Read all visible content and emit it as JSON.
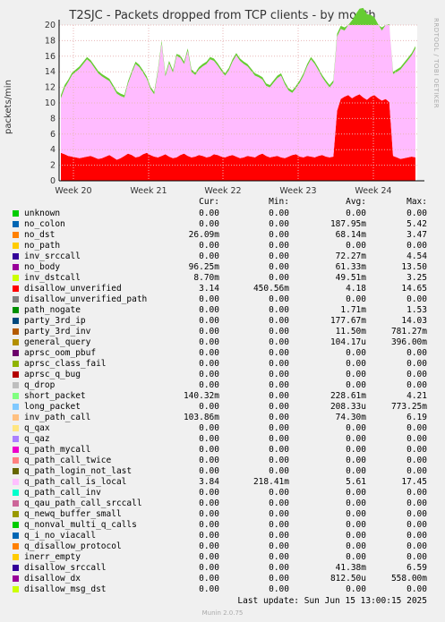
{
  "chart_data": {
    "type": "area",
    "title": "T2SJC - Packets dropped from TCP clients - by month",
    "ylabel": "packets/min",
    "ylim": [
      0,
      20
    ],
    "yticks": [
      0,
      2,
      4,
      6,
      8,
      10,
      12,
      14,
      16,
      18,
      20
    ],
    "xticks": [
      "Week 20",
      "Week 21",
      "Week 22",
      "Week 23",
      "Week 24"
    ],
    "grid": true,
    "series": [
      {
        "name": "disallow_unverified",
        "color": "#ff0000",
        "values": [
          3.6,
          3.4,
          3.2,
          3.1,
          3.0,
          2.9,
          3.0,
          3.1,
          3.2,
          3.0,
          2.8,
          2.9,
          3.1,
          3.3,
          3.0,
          2.7,
          2.9,
          3.2,
          3.5,
          3.3,
          3.0,
          3.1,
          3.4,
          3.6,
          3.3,
          3.1,
          3.0,
          3.2,
          3.4,
          3.1,
          2.9,
          3.0,
          3.3,
          3.5,
          3.2,
          3.0,
          3.1,
          3.3,
          3.2,
          3.0,
          3.1,
          3.4,
          3.3,
          3.1,
          3.0,
          3.2,
          3.3,
          3.1,
          2.9,
          3.0,
          3.2,
          3.1,
          3.0,
          3.3,
          3.5,
          3.2,
          3.0,
          3.1,
          3.2,
          3.0,
          2.9,
          3.1,
          3.3,
          3.4,
          3.1,
          3.0,
          3.2,
          3.1,
          3.0,
          3.2,
          3.3,
          3.1,
          3.0,
          3.1,
          9.0,
          10.5,
          10.8,
          11.0,
          10.6,
          10.9,
          11.1,
          10.7,
          10.4,
          10.8,
          11.0,
          10.6,
          10.3,
          10.5,
          10.1,
          3.2,
          3.0,
          2.8,
          2.9,
          3.0,
          3.1,
          3.0
        ]
      },
      {
        "name": "q_path_call_is_local",
        "color": "#ffbbff",
        "values": [
          7.0,
          8.5,
          9.5,
          10.5,
          11.0,
          11.5,
          12.0,
          12.5,
          12.0,
          11.5,
          11.0,
          10.5,
          10.0,
          9.5,
          9.0,
          8.5,
          8.0,
          7.5,
          9.0,
          10.5,
          12.0,
          11.5,
          10.5,
          9.5,
          8.5,
          8.0,
          11.0,
          14.5,
          10.0,
          12.0,
          11.0,
          13.0,
          12.5,
          11.5,
          13.5,
          11.0,
          10.5,
          11.0,
          11.5,
          12.0,
          12.5,
          12.0,
          11.5,
          11.0,
          10.5,
          11.0,
          12.0,
          13.0,
          12.5,
          12.0,
          11.5,
          11.0,
          10.5,
          10.0,
          9.5,
          9.0,
          9.0,
          9.5,
          10.0,
          10.5,
          9.5,
          8.5,
          8.0,
          8.5,
          9.5,
          10.5,
          11.5,
          12.5,
          12.0,
          11.0,
          10.0,
          9.5,
          9.0,
          9.5,
          9.5,
          9.0,
          8.5,
          9.0,
          10.0,
          10.5,
          11.0,
          11.5,
          11.0,
          10.5,
          10.0,
          9.5,
          9.0,
          9.5,
          10.0,
          10.5,
          11.0,
          11.5,
          12.0,
          12.5,
          13.0,
          14.0
        ]
      },
      {
        "name": "short_packet",
        "color": "#66cc33",
        "values": [
          0.4,
          0.4,
          0.3,
          0.3,
          0.3,
          0.3,
          0.3,
          0.3,
          0.3,
          0.3,
          0.3,
          0.3,
          0.3,
          0.3,
          0.3,
          0.3,
          0.3,
          0.3,
          0.3,
          0.3,
          0.3,
          0.3,
          0.3,
          0.3,
          0.3,
          0.3,
          0.3,
          0.3,
          0.3,
          0.3,
          0.3,
          0.3,
          0.3,
          0.3,
          0.3,
          0.3,
          0.3,
          0.3,
          0.3,
          0.3,
          0.3,
          0.3,
          0.3,
          0.3,
          0.3,
          0.3,
          0.3,
          0.3,
          0.3,
          0.3,
          0.3,
          0.3,
          0.3,
          0.3,
          0.3,
          0.3,
          0.3,
          0.3,
          0.3,
          0.3,
          0.3,
          0.3,
          0.3,
          0.3,
          0.3,
          0.3,
          0.3,
          0.3,
          0.3,
          0.3,
          0.3,
          0.3,
          0.3,
          0.3,
          0.4,
          0.4,
          0.4,
          0.4,
          0.4,
          0.4,
          0.4,
          0.4,
          0.4,
          0.4,
          0.4,
          0.4,
          0.4,
          0.4,
          0.4,
          0.3,
          0.3,
          0.3,
          0.3,
          0.3,
          0.3,
          0.3
        ]
      }
    ],
    "legend": [
      {
        "name": "unknown",
        "color": "#00cc00",
        "cur": "0.00",
        "min": "0.00",
        "avg": "0.00",
        "max": "0.00"
      },
      {
        "name": "no_colon",
        "color": "#0066b3",
        "cur": "0.00",
        "min": "0.00",
        "avg": "187.95m",
        "max": "5.42"
      },
      {
        "name": "no_dst",
        "color": "#ff8000",
        "cur": "26.09m",
        "min": "0.00",
        "avg": "68.14m",
        "max": "3.47"
      },
      {
        "name": "no_path",
        "color": "#ffcc00",
        "cur": "0.00",
        "min": "0.00",
        "avg": "0.00",
        "max": "0.00"
      },
      {
        "name": "inv_srccall",
        "color": "#330099",
        "cur": "0.00",
        "min": "0.00",
        "avg": "72.27m",
        "max": "4.54"
      },
      {
        "name": "no_body",
        "color": "#990099",
        "cur": "96.25m",
        "min": "0.00",
        "avg": "61.33m",
        "max": "13.50"
      },
      {
        "name": "inv_dstcall",
        "color": "#ccff00",
        "cur": "8.70m",
        "min": "0.00",
        "avg": "49.51m",
        "max": "3.25"
      },
      {
        "name": "disallow_unverified",
        "color": "#ff0000",
        "cur": "3.14",
        "min": "450.56m",
        "avg": "4.18",
        "max": "14.65"
      },
      {
        "name": "disallow_unverified_path",
        "color": "#808080",
        "cur": "0.00",
        "min": "0.00",
        "avg": "0.00",
        "max": "0.00"
      },
      {
        "name": "path_nogate",
        "color": "#008f00",
        "cur": "0.00",
        "min": "0.00",
        "avg": "1.71m",
        "max": "1.53"
      },
      {
        "name": "party_3rd_ip",
        "color": "#00487d",
        "cur": "0.00",
        "min": "0.00",
        "avg": "177.67m",
        "max": "14.03"
      },
      {
        "name": "party_3rd_inv",
        "color": "#b35a00",
        "cur": "0.00",
        "min": "0.00",
        "avg": "11.50m",
        "max": "781.27m"
      },
      {
        "name": "general_query",
        "color": "#b38f00",
        "cur": "0.00",
        "min": "0.00",
        "avg": "104.17u",
        "max": "396.00m"
      },
      {
        "name": "aprsc_oom_pbuf",
        "color": "#6b006b",
        "cur": "0.00",
        "min": "0.00",
        "avg": "0.00",
        "max": "0.00"
      },
      {
        "name": "aprsc_class_fail",
        "color": "#8fb300",
        "cur": "0.00",
        "min": "0.00",
        "avg": "0.00",
        "max": "0.00"
      },
      {
        "name": "aprsc_q_bug",
        "color": "#b30000",
        "cur": "0.00",
        "min": "0.00",
        "avg": "0.00",
        "max": "0.00"
      },
      {
        "name": "q_drop",
        "color": "#bebebe",
        "cur": "0.00",
        "min": "0.00",
        "avg": "0.00",
        "max": "0.00"
      },
      {
        "name": "short_packet",
        "color": "#80ff80",
        "cur": "140.32m",
        "min": "0.00",
        "avg": "228.61m",
        "max": "4.21"
      },
      {
        "name": "long_packet",
        "color": "#80c9ff",
        "cur": "0.00",
        "min": "0.00",
        "avg": "208.33u",
        "max": "773.25m"
      },
      {
        "name": "inv_path_call",
        "color": "#ffc080",
        "cur": "103.86m",
        "min": "0.00",
        "avg": "74.30m",
        "max": "6.19"
      },
      {
        "name": "q_qax",
        "color": "#ffe680",
        "cur": "0.00",
        "min": "0.00",
        "avg": "0.00",
        "max": "0.00"
      },
      {
        "name": "q_qaz",
        "color": "#aa80ff",
        "cur": "0.00",
        "min": "0.00",
        "avg": "0.00",
        "max": "0.00"
      },
      {
        "name": "q_path_mycall",
        "color": "#ee00cc",
        "cur": "0.00",
        "min": "0.00",
        "avg": "0.00",
        "max": "0.00"
      },
      {
        "name": "q_path_call_twice",
        "color": "#ff8080",
        "cur": "0.00",
        "min": "0.00",
        "avg": "0.00",
        "max": "0.00"
      },
      {
        "name": "q_path_login_not_last",
        "color": "#666600",
        "cur": "0.00",
        "min": "0.00",
        "avg": "0.00",
        "max": "0.00"
      },
      {
        "name": "q_path_call_is_local",
        "color": "#ffbfff",
        "cur": "3.84",
        "min": "218.41m",
        "avg": "5.61",
        "max": "17.45"
      },
      {
        "name": "q_path_call_inv",
        "color": "#00ffcc",
        "cur": "0.00",
        "min": "0.00",
        "avg": "0.00",
        "max": "0.00"
      },
      {
        "name": "q_qau_path_call_srccall",
        "color": "#cc6699",
        "cur": "0.00",
        "min": "0.00",
        "avg": "0.00",
        "max": "0.00"
      },
      {
        "name": "q_newq_buffer_small",
        "color": "#999900",
        "cur": "0.00",
        "min": "0.00",
        "avg": "0.00",
        "max": "0.00"
      },
      {
        "name": "q_nonval_multi_q_calls",
        "color": "#00cc00",
        "cur": "0.00",
        "min": "0.00",
        "avg": "0.00",
        "max": "0.00"
      },
      {
        "name": "q_i_no_viacall",
        "color": "#0066b3",
        "cur": "0.00",
        "min": "0.00",
        "avg": "0.00",
        "max": "0.00"
      },
      {
        "name": "q_disallow_protocol",
        "color": "#ff8000",
        "cur": "0.00",
        "min": "0.00",
        "avg": "0.00",
        "max": "0.00"
      },
      {
        "name": "inerr_empty",
        "color": "#ffcc00",
        "cur": "0.00",
        "min": "0.00",
        "avg": "0.00",
        "max": "0.00"
      },
      {
        "name": "disallow_srccall",
        "color": "#330099",
        "cur": "0.00",
        "min": "0.00",
        "avg": "41.38m",
        "max": "6.59"
      },
      {
        "name": "disallow_dx",
        "color": "#990099",
        "cur": "0.00",
        "min": "0.00",
        "avg": "812.50u",
        "max": "558.00m"
      },
      {
        "name": "disallow_msg_dst",
        "color": "#ccff00",
        "cur": "0.00",
        "min": "0.00",
        "avg": "0.00",
        "max": "0.00"
      }
    ]
  },
  "columns": {
    "cur": "Cur:",
    "min": "Min:",
    "avg": "Avg:",
    "max": "Max:"
  },
  "last_update": "Last update: Sun Jun 15 13:00:15 2025",
  "watermark": "RRDTOOL / TOBI OETIKER",
  "footer": "Munin 2.0.75"
}
